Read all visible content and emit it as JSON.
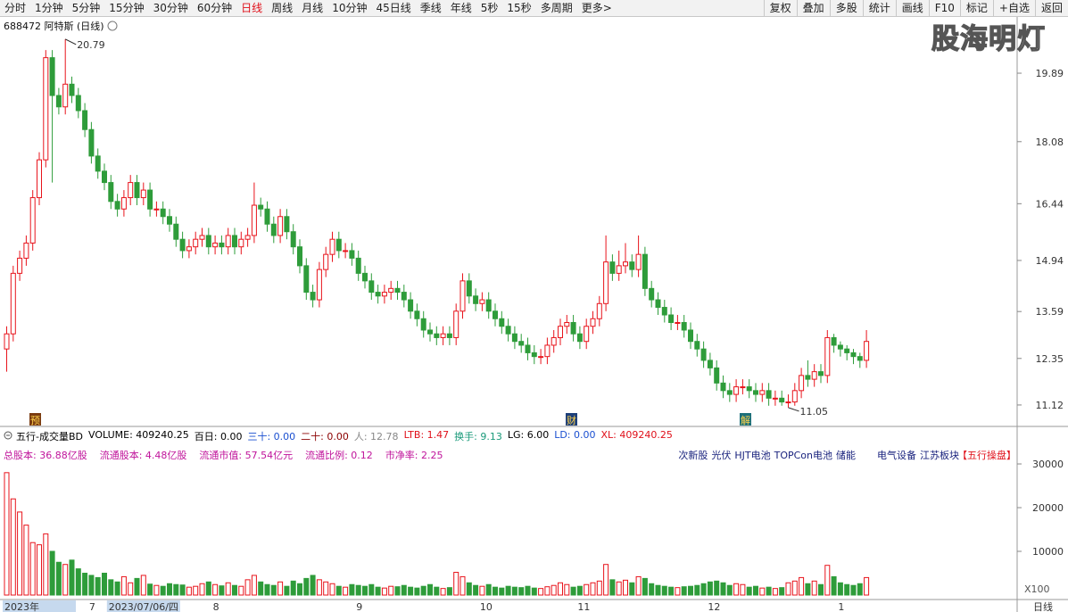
{
  "toolbar": {
    "left": [
      {
        "label": "分时"
      },
      {
        "label": "1分钟"
      },
      {
        "label": "5分钟"
      },
      {
        "label": "15分钟"
      },
      {
        "label": "30分钟"
      },
      {
        "label": "60分钟"
      },
      {
        "label": "日线",
        "active": true
      },
      {
        "label": "周线"
      },
      {
        "label": "月线"
      },
      {
        "label": "10分钟"
      },
      {
        "label": "45日线"
      },
      {
        "label": "季线"
      },
      {
        "label": "年线"
      },
      {
        "label": "5秒"
      },
      {
        "label": "15秒"
      },
      {
        "label": "多周期"
      },
      {
        "label": "更多>"
      }
    ],
    "right": [
      "复权",
      "叠加",
      "多股",
      "统计",
      "画线",
      "F10",
      "标记",
      "+自选",
      "返回"
    ]
  },
  "header": {
    "title": "688472 阿特斯 (日线)",
    "watermark": "股海明灯"
  },
  "events": [
    {
      "label": "预",
      "color": "#7a3b10"
    },
    {
      "label": "财",
      "color": "#1d3f7a"
    },
    {
      "label": "解",
      "color": "#1c6f7a"
    }
  ],
  "indicator": [
    {
      "text": "五行-成交量BD",
      "color": "#000"
    },
    {
      "text": "VOLUME: 409240.25",
      "color": "#000"
    },
    {
      "text": "百日: 0.00",
      "color": "#000"
    },
    {
      "text": "三十: 0.00",
      "color": "#1a4fd0"
    },
    {
      "text": "二十: 0.00",
      "color": "#8b0000"
    },
    {
      "text": "人: 12.78",
      "color": "#888"
    },
    {
      "text": "LTB: 1.47",
      "color": "#e0101a"
    },
    {
      "text": "换手: 9.13",
      "color": "#1a9a7a"
    },
    {
      "text": "LG: 6.00",
      "color": "#000"
    },
    {
      "text": "LD: 0.00",
      "color": "#1a4fd0"
    },
    {
      "text": "XL: 409240.25",
      "color": "#e0101a"
    }
  ],
  "info": {
    "left": [
      "总股本: 36.88亿股",
      "流通股本: 4.48亿股",
      "流通市值: 57.54亿元",
      "流通比例: 0.12",
      "市净率: 2.25"
    ],
    "tags": [
      "次新股",
      "光伏",
      "HJT电池",
      "TOPCon电池",
      "储能"
    ],
    "tags2": [
      "电气设备",
      "江苏板块"
    ],
    "flag": "【五行操盘】"
  },
  "chart_data": [
    {
      "type": "candlestick",
      "up_color": "#e8141c",
      "down_color": "#2e9c3a",
      "ylim": [
        10.93,
        21.4
      ],
      "yticks": [
        11.12,
        12.35,
        13.59,
        14.94,
        16.44,
        18.08,
        19.89
      ],
      "open": [
        12.6,
        13.0,
        14.6,
        15.0,
        15.4,
        16.6,
        17.6,
        20.3,
        19.3,
        19.0,
        19.6,
        19.3,
        18.9,
        18.4,
        17.7,
        17.3,
        17.0,
        16.5,
        16.3,
        16.6,
        17.0,
        16.6,
        16.8,
        16.3,
        16.3,
        16.1,
        15.9,
        15.5,
        15.2,
        15.3,
        15.5,
        15.6,
        15.3,
        15.4,
        15.3,
        15.6,
        15.3,
        15.5,
        15.6,
        16.4,
        16.3,
        15.9,
        15.6,
        16.1,
        15.7,
        15.3,
        14.8,
        14.1,
        13.9,
        14.7,
        15.1,
        15.5,
        15.2,
        15.2,
        15.0,
        14.6,
        14.4,
        14.1,
        14.0,
        14.1,
        14.2,
        14.1,
        13.9,
        13.6,
        13.4,
        13.1,
        13.0,
        12.9,
        13.0,
        12.9,
        13.6,
        14.4,
        14.0,
        13.8,
        13.9,
        13.6,
        13.4,
        13.2,
        13.0,
        12.8,
        12.7,
        12.5,
        12.4,
        12.4,
        12.7,
        12.9,
        13.2,
        13.3,
        13.0,
        12.8,
        13.2,
        13.4,
        13.8,
        14.9,
        14.6,
        14.8,
        14.9,
        14.7,
        15.1,
        14.2,
        13.9,
        13.7,
        13.5,
        13.3,
        13.3,
        13.1,
        12.8,
        12.6,
        12.3,
        12.1,
        11.7,
        11.5,
        11.4,
        11.6,
        11.6,
        11.5,
        11.4,
        11.5,
        11.3,
        11.3,
        11.2,
        11.2,
        11.5,
        11.9,
        11.8,
        12.0,
        11.9,
        12.9,
        12.7,
        12.6,
        12.5,
        12.4,
        12.3
      ],
      "high": [
        13.2,
        14.8,
        15.2,
        15.6,
        16.8,
        17.8,
        20.5,
        20.5,
        19.5,
        20.79,
        19.8,
        19.5,
        19.1,
        18.6,
        17.9,
        17.5,
        17.2,
        16.7,
        16.8,
        17.2,
        17.2,
        17.0,
        17.0,
        16.5,
        16.5,
        16.3,
        16.1,
        15.7,
        15.5,
        15.7,
        15.8,
        15.8,
        15.6,
        15.6,
        15.8,
        15.8,
        15.7,
        15.8,
        17.0,
        16.6,
        16.5,
        16.1,
        16.3,
        16.3,
        15.9,
        15.5,
        15.0,
        14.3,
        14.9,
        15.3,
        15.7,
        15.7,
        15.4,
        15.4,
        15.2,
        14.8,
        14.6,
        14.3,
        14.3,
        14.4,
        14.4,
        14.3,
        14.1,
        13.8,
        13.6,
        13.3,
        13.2,
        13.2,
        13.2,
        13.8,
        14.6,
        14.6,
        14.2,
        14.1,
        14.1,
        13.8,
        13.6,
        13.4,
        13.2,
        13.0,
        12.9,
        12.7,
        12.6,
        12.9,
        13.1,
        13.4,
        13.5,
        13.5,
        13.2,
        13.4,
        13.6,
        14.0,
        15.6,
        15.1,
        15.2,
        15.4,
        15.1,
        15.6,
        15.3,
        14.4,
        14.1,
        13.9,
        13.7,
        13.5,
        13.5,
        13.3,
        13.0,
        12.8,
        12.5,
        12.3,
        11.9,
        11.7,
        11.8,
        11.8,
        11.8,
        11.7,
        11.7,
        11.7,
        11.5,
        11.5,
        11.4,
        11.7,
        12.1,
        12.3,
        12.2,
        12.2,
        13.1,
        13.0,
        12.8,
        12.7,
        12.6,
        12.5,
        13.1
      ],
      "low": [
        12.0,
        12.8,
        14.4,
        14.8,
        15.2,
        16.4,
        17.4,
        17.0,
        18.8,
        18.8,
        19.1,
        18.7,
        18.2,
        17.5,
        17.1,
        16.8,
        16.3,
        16.1,
        16.1,
        16.4,
        16.4,
        16.4,
        16.1,
        16.1,
        15.9,
        15.7,
        15.3,
        15.0,
        15.0,
        15.1,
        15.3,
        15.1,
        15.1,
        15.1,
        15.1,
        15.1,
        15.1,
        15.3,
        15.4,
        16.1,
        15.7,
        15.4,
        15.4,
        15.5,
        15.1,
        14.6,
        13.9,
        13.7,
        13.7,
        14.5,
        14.9,
        15.0,
        15.0,
        14.8,
        14.4,
        14.2,
        13.9,
        13.8,
        13.8,
        13.9,
        13.9,
        13.7,
        13.4,
        13.2,
        12.9,
        12.8,
        12.7,
        12.7,
        12.7,
        12.7,
        13.4,
        13.8,
        13.6,
        13.6,
        13.4,
        13.2,
        13.0,
        12.8,
        12.6,
        12.5,
        12.3,
        12.2,
        12.2,
        12.2,
        12.5,
        12.7,
        13.0,
        12.8,
        12.6,
        12.6,
        13.0,
        13.2,
        13.6,
        14.4,
        14.4,
        14.6,
        14.5,
        14.5,
        14.0,
        13.7,
        13.5,
        13.3,
        13.1,
        13.1,
        12.9,
        12.6,
        12.4,
        12.1,
        11.9,
        11.5,
        11.3,
        11.2,
        11.2,
        11.4,
        11.3,
        11.2,
        11.2,
        11.1,
        11.1,
        11.1,
        11.05,
        11.1,
        11.3,
        11.6,
        11.6,
        11.7,
        11.7,
        12.5,
        12.4,
        12.3,
        12.2,
        12.1,
        12.1
      ],
      "close": [
        13.0,
        14.6,
        15.0,
        15.4,
        16.6,
        17.6,
        20.3,
        19.3,
        19.0,
        19.6,
        19.3,
        18.9,
        18.4,
        17.7,
        17.3,
        17.0,
        16.5,
        16.3,
        16.6,
        17.0,
        16.6,
        16.8,
        16.3,
        16.3,
        16.1,
        15.9,
        15.5,
        15.2,
        15.3,
        15.5,
        15.6,
        15.3,
        15.4,
        15.3,
        15.6,
        15.3,
        15.5,
        15.6,
        16.4,
        16.3,
        15.9,
        15.6,
        16.1,
        15.7,
        15.3,
        14.8,
        14.1,
        13.9,
        14.7,
        15.1,
        15.5,
        15.2,
        15.2,
        15.0,
        14.6,
        14.4,
        14.1,
        14.0,
        14.1,
        14.2,
        14.1,
        13.9,
        13.6,
        13.4,
        13.1,
        13.0,
        12.9,
        13.0,
        12.9,
        13.6,
        14.4,
        14.0,
        13.8,
        13.9,
        13.6,
        13.4,
        13.2,
        13.0,
        12.8,
        12.7,
        12.5,
        12.4,
        12.4,
        12.7,
        12.9,
        13.2,
        13.3,
        13.0,
        12.8,
        13.2,
        13.4,
        13.8,
        14.9,
        14.6,
        14.8,
        14.9,
        14.7,
        15.1,
        14.2,
        13.9,
        13.7,
        13.5,
        13.3,
        13.3,
        13.1,
        12.8,
        12.6,
        12.3,
        12.1,
        11.7,
        11.5,
        11.4,
        11.6,
        11.6,
        11.5,
        11.4,
        11.5,
        11.3,
        11.3,
        11.2,
        11.2,
        11.5,
        11.9,
        11.8,
        12.0,
        11.9,
        12.9,
        12.7,
        12.6,
        12.5,
        12.4,
        12.3,
        12.8
      ]
    },
    {
      "type": "bar",
      "unit_label": "X100",
      "period_label": "日线",
      "up_color": "#e8141c",
      "down_color": "#2e9c3a",
      "ylim": [
        0,
        34700
      ],
      "yticks": [
        10000,
        20000,
        30000
      ],
      "categories": [
        "2023年",
        null,
        null,
        null,
        null,
        null,
        null,
        null,
        null,
        null,
        null,
        null,
        null,
        "7",
        null,
        null,
        "2023/07/06/四",
        null,
        null,
        null,
        null,
        null,
        null,
        null,
        null,
        null,
        null,
        null,
        null,
        null,
        null,
        null,
        "8",
        null,
        null,
        null,
        null,
        null,
        null,
        null,
        null,
        null,
        null,
        null,
        null,
        null,
        null,
        null,
        null,
        null,
        null,
        null,
        null,
        null,
        "9",
        null,
        null,
        null,
        null,
        null,
        null,
        null,
        null,
        null,
        null,
        null,
        null,
        null,
        null,
        null,
        null,
        null,
        null,
        "10",
        null,
        null,
        null,
        null,
        null,
        null,
        null,
        null,
        null,
        null,
        null,
        null,
        null,
        null,
        "11",
        null,
        null,
        null,
        null,
        null,
        null,
        null,
        null,
        null,
        null,
        null,
        null,
        null,
        null,
        null,
        null,
        null,
        null,
        null,
        "12",
        null,
        null,
        null,
        null,
        null,
        null,
        null,
        null,
        null,
        null,
        null,
        null,
        null,
        null,
        null,
        null,
        null,
        null,
        null,
        "1",
        null,
        null,
        null,
        null
      ],
      "values": [
        28000,
        22000,
        19000,
        16000,
        12000,
        11500,
        14000,
        10000,
        7500,
        7000,
        8000,
        6000,
        5000,
        4500,
        4000,
        5000,
        3500,
        3000,
        4200,
        2800,
        3800,
        4500,
        2500,
        2200,
        2000,
        2600,
        2400,
        2300,
        1800,
        2000,
        2600,
        3000,
        2400,
        2100,
        2800,
        2200,
        2000,
        3500,
        4500,
        3000,
        2400,
        2200,
        3000,
        2000,
        3200,
        2600,
        3800,
        4500,
        3500,
        3000,
        2600,
        2000,
        1800,
        2400,
        2200,
        2000,
        2400,
        1800,
        1600,
        2000,
        1900,
        2200,
        1800,
        1600,
        2000,
        2400,
        1800,
        1500,
        1700,
        5200,
        4200,
        2800,
        2200,
        2000,
        2400,
        1800,
        1600,
        2000,
        1800,
        1700,
        2000,
        1600,
        1500,
        1900,
        2200,
        2800,
        2400,
        1800,
        2000,
        2400,
        2800,
        3200,
        7000,
        3500,
        3000,
        3400,
        2800,
        4200,
        3800,
        2600,
        2200,
        2000,
        1800,
        1700,
        1900,
        2000,
        2200,
        2600,
        3000,
        3200,
        2800,
        2200,
        2600,
        2400,
        1800,
        2000,
        1600,
        1800,
        1500,
        1700,
        2800,
        3200,
        4000,
        2600,
        3200,
        2400,
        6800,
        4200,
        2800,
        2400,
        2200,
        2600,
        4000
      ]
    }
  ]
}
